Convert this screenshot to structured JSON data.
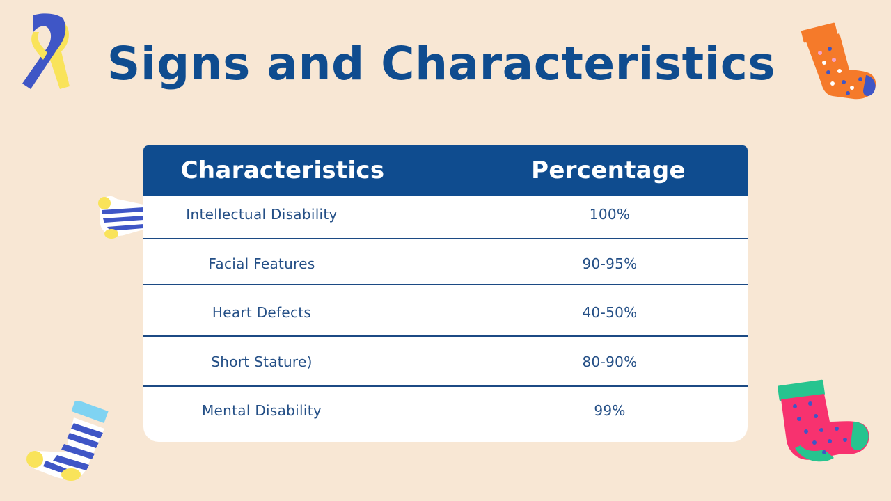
{
  "slide": {
    "title": "Signs and Characteristics"
  },
  "table": {
    "headers": {
      "characteristics": "Characteristics",
      "percentage": "Percentage"
    },
    "rows": [
      {
        "characteristic": "Intellectual Disability",
        "percentage": "100%"
      },
      {
        "characteristic": "Facial Features",
        "percentage": "90-95%"
      },
      {
        "characteristic": "Heart Defects",
        "percentage": "40-50%"
      },
      {
        "characteristic": "Short Stature)",
        "percentage": "80-90%"
      },
      {
        "characteristic": "Mental Disability",
        "percentage": "99%"
      }
    ]
  },
  "decorations": {
    "awareness_ribbon": "awareness-ribbon-icon",
    "sock_orange": "orange-polka-dot-sock-icon",
    "sock_blue_striped_small": "blue-striped-sock-icon",
    "sock_blue_striped": "blue-striped-sock-icon",
    "sock_pink": "pink-polka-dot-sock-icon"
  },
  "colors": {
    "background": "#f8e7d4",
    "accent": "#0f4c8f",
    "table_text": "#244f86"
  }
}
